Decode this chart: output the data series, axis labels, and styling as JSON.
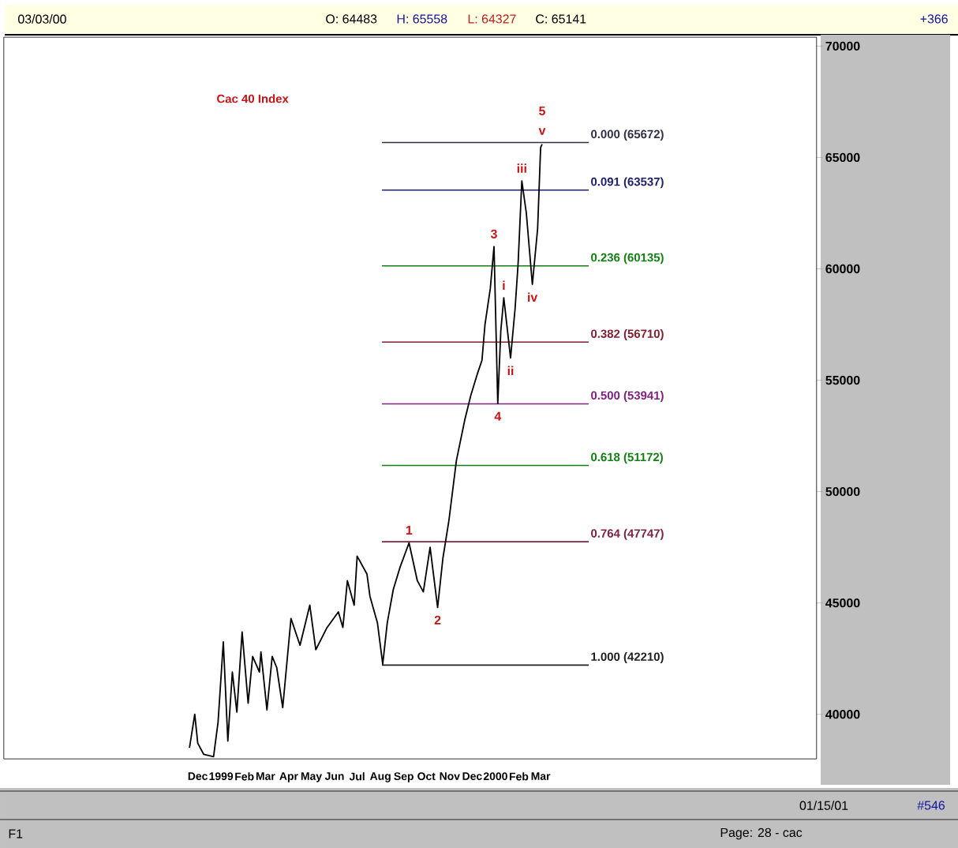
{
  "chart_data": {
    "type": "line",
    "title": "Cac 40 Index",
    "color": "#000000",
    "x": [
      "1998-11-20",
      "1998-11-27",
      "1998-12-01",
      "1998-12-09",
      "1998-12-22",
      "1998-12-28",
      "1999-01-04",
      "1999-01-10",
      "1999-01-16",
      "1999-01-22",
      "1999-01-29",
      "1999-02-06",
      "1999-02-12",
      "1999-02-21",
      "1999-02-23",
      "1999-03-03",
      "1999-03-10",
      "1999-03-16",
      "1999-03-24",
      "1999-04-04",
      "1999-04-16",
      "1999-04-29",
      "1999-05-07",
      "1999-05-22",
      "1999-06-06",
      "1999-06-12",
      "1999-06-18",
      "1999-06-27",
      "1999-07-01",
      "1999-07-14",
      "1999-07-18",
      "1999-07-28",
      "1999-08-04",
      "1999-08-10",
      "1999-08-18",
      "1999-08-27",
      "1999-09-08",
      "1999-09-19",
      "1999-09-27",
      "1999-10-06",
      "1999-10-16",
      "1999-10-23",
      "1999-10-31",
      "1999-11-10",
      "1999-11-21",
      "1999-11-29",
      "1999-12-08",
      "1999-12-14",
      "1999-12-18",
      "1999-12-25",
      "1999-12-30",
      "2000-01-04",
      "2000-01-08",
      "2000-01-12",
      "2000-01-21",
      "2000-01-27",
      "2000-01-31",
      "2000-02-05",
      "2000-02-11",
      "2000-02-19",
      "2000-02-26",
      "2000-03-01",
      "2000-03-03"
    ],
    "values": [
      38500,
      40000,
      38700,
      38200,
      38100,
      39650,
      43250,
      38800,
      41900,
      40100,
      43700,
      40500,
      42600,
      41900,
      42800,
      40200,
      42600,
      42100,
      40300,
      44300,
      43100,
      44900,
      42900,
      43900,
      44600,
      43900,
      46000,
      44900,
      47100,
      46300,
      45300,
      44100,
      42250,
      44100,
      45600,
      46600,
      47700,
      46000,
      45500,
      47500,
      44800,
      47000,
      48700,
      51400,
      53200,
      54300,
      55300,
      55900,
      57500,
      59100,
      61000,
      53950,
      57200,
      58700,
      56000,
      58200,
      60200,
      63950,
      62500,
      59300,
      61800,
      65450,
      65600
    ],
    "xlim": [
      "1998-03-18",
      "2001-03-03"
    ],
    "xticks": [
      {
        "value": "1998-12-01",
        "label": "Dec"
      },
      {
        "value": "1999-01-01",
        "label": "1999"
      },
      {
        "value": "1999-02-01",
        "label": "Feb"
      },
      {
        "value": "1999-03-01",
        "label": "Mar"
      },
      {
        "value": "1999-04-01",
        "label": "Apr"
      },
      {
        "value": "1999-05-01",
        "label": "May"
      },
      {
        "value": "1999-06-01",
        "label": "Jun"
      },
      {
        "value": "1999-07-01",
        "label": "Jul"
      },
      {
        "value": "1999-08-01",
        "label": "Aug"
      },
      {
        "value": "1999-09-01",
        "label": "Sep"
      },
      {
        "value": "1999-10-01",
        "label": "Oct"
      },
      {
        "value": "1999-11-01",
        "label": "Nov"
      },
      {
        "value": "1999-12-01",
        "label": "Dec"
      },
      {
        "value": "2000-01-01",
        "label": "2000"
      },
      {
        "value": "2000-02-01",
        "label": "Feb"
      },
      {
        "value": "2000-03-01",
        "label": "Mar"
      }
    ],
    "ylim": [
      38000,
      70400
    ],
    "yticks": [
      40000,
      45000,
      50000,
      55000,
      60000,
      65000,
      70000
    ],
    "ref_lines": [
      {
        "axis": "y",
        "value": 65672,
        "label": "0.000 (65672)",
        "color": "#303048"
      },
      {
        "axis": "y",
        "value": 63537,
        "label": "0.091 (63537)",
        "color": "#202070"
      },
      {
        "axis": "y",
        "value": 60135,
        "label": "0.236 (60135)",
        "color": "#108010"
      },
      {
        "axis": "y",
        "value": 56710,
        "label": "0.382 (56710)",
        "color": "#802030"
      },
      {
        "axis": "y",
        "value": 53941,
        "label": "0.500 (53941)",
        "color": "#802080"
      },
      {
        "axis": "y",
        "value": 51172,
        "label": "0.618 (51172)",
        "color": "#108010"
      },
      {
        "axis": "y",
        "value": 47747,
        "label": "0.764 (47747)",
        "color": "#802040"
      },
      {
        "axis": "y",
        "value": 42210,
        "label": "1.000 (42210)",
        "color": "#202020"
      }
    ],
    "annotations": [
      {
        "text": "1",
        "x": "1999-09-08",
        "y": 47700
      },
      {
        "text": "2",
        "x": "1999-10-16",
        "y": 44800
      },
      {
        "text": "3",
        "x": "1999-12-30",
        "y": 61000
      },
      {
        "text": "4",
        "x": "2000-01-04",
        "y": 53950
      },
      {
        "text": "i",
        "x": "2000-01-12",
        "y": 58700
      },
      {
        "text": "ii",
        "x": "2000-01-21",
        "y": 56000
      },
      {
        "text": "iii",
        "x": "2000-02-05",
        "y": 63950
      },
      {
        "text": "iv",
        "x": "2000-02-19",
        "y": 59300
      },
      {
        "text": "v",
        "x": "2000-03-03",
        "y": 65600
      },
      {
        "text": "5",
        "x": "2000-03-03",
        "y": 65600
      },
      "03/03/00",
      "O: 64483",
      "H: 65558",
      "L: 64327",
      "C: 65141",
      "+366",
      "01/15/01",
      "#546",
      "Page: 28 - cac",
      "F1"
    ]
  }
}
